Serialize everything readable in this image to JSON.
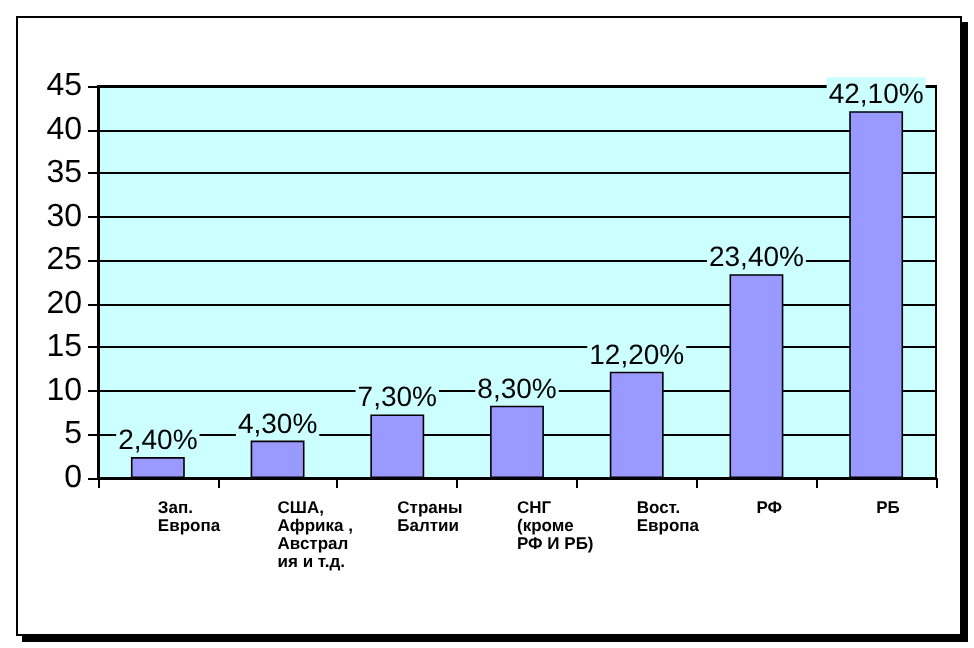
{
  "chart_data": {
    "type": "bar",
    "categories": [
      "Зап. Европа",
      "США, Африка ,Австралия и т.д.",
      "Страны Балтии",
      "СНГ (кроме РФ И РБ)",
      "Вост. Европа",
      "РФ",
      "РБ"
    ],
    "values": [
      2.4,
      4.3,
      7.3,
      8.3,
      12.2,
      23.4,
      42.1
    ],
    "value_labels": [
      "2,40%",
      "4,30%",
      "7,30%",
      "8,30%",
      "12,20%",
      "23,40%",
      "42,10%"
    ],
    "color": "#9999ff",
    "ylim": [
      0,
      45
    ],
    "yticks": [
      0,
      5,
      10,
      15,
      20,
      25,
      30,
      35,
      40,
      45
    ],
    "grid": "y"
  }
}
